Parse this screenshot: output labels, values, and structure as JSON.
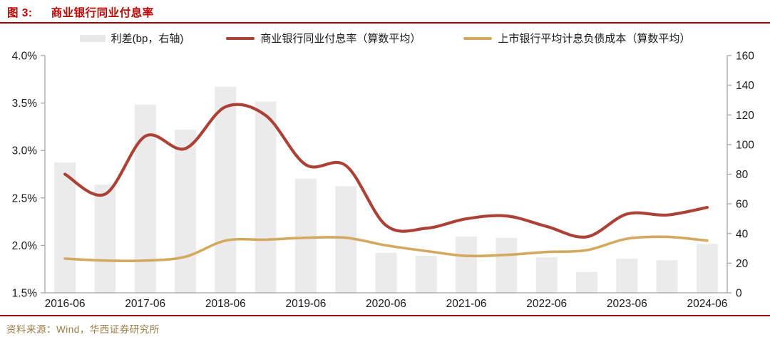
{
  "header": {
    "figure_label": "图 3:",
    "title": "商业银行同业付息率"
  },
  "legend": {
    "items": [
      {
        "label": "利差(bp，右轴)",
        "marker": "bar-swatch",
        "color": "#E7E7E7"
      },
      {
        "label": "商业银行同业付息率（算数平均）",
        "marker": "line",
        "color": "#AC4237"
      },
      {
        "label": "上市银行平均计息负债成本（算数平均）",
        "marker": "line",
        "color": "#D3A95F"
      }
    ]
  },
  "footer": {
    "source": "资料来源：Wind，华西证券研究所"
  },
  "colors": {
    "title_red": "#C00000",
    "rule_red": "#990000",
    "axis_line": "#A6A6A6",
    "tick_label": "#1A1A1A",
    "source_text": "#9C7B46",
    "bar_fill": "#EBEBEB",
    "rate_line": "#AC4237",
    "cost_line": "#D3A95F"
  },
  "chart_data": {
    "type": "combo",
    "categories": [
      "2016-06",
      "2016-12",
      "2017-06",
      "2017-12",
      "2018-06",
      "2018-12",
      "2019-06",
      "2019-12",
      "2020-06",
      "2020-12",
      "2021-06",
      "2021-12",
      "2022-06",
      "2022-12",
      "2023-06",
      "2023-12",
      "2024-06"
    ],
    "x_tick_labels": [
      "2016-06",
      "2017-06",
      "2018-06",
      "2019-06",
      "2020-06",
      "2021-06",
      "2022-06",
      "2023-06",
      "2024-06"
    ],
    "series": [
      {
        "name": "利差(bp，右轴)",
        "type": "bar",
        "axis": "right",
        "color": "#EBEBEB",
        "values": [
          88,
          73,
          127,
          110,
          139,
          129,
          77,
          72,
          27,
          25,
          38,
          37,
          24,
          14,
          23,
          22,
          33
        ]
      },
      {
        "name": "商业银行同业付息率（算数平均）",
        "type": "line",
        "axis": "left",
        "color": "#AC4237",
        "values": [
          2.75,
          2.54,
          3.15,
          3.02,
          3.46,
          3.37,
          2.85,
          2.84,
          2.21,
          2.18,
          2.28,
          2.31,
          2.2,
          2.09,
          2.33,
          2.32,
          2.4
        ]
      },
      {
        "name": "上市银行平均计息负债成本（算数平均）",
        "type": "line",
        "axis": "left",
        "color": "#D3A95F",
        "values": [
          1.86,
          1.84,
          1.84,
          1.88,
          2.05,
          2.06,
          2.08,
          2.08,
          2.0,
          1.94,
          1.89,
          1.9,
          1.93,
          1.95,
          2.07,
          2.09,
          2.05
        ]
      }
    ],
    "left_axis": {
      "min": 1.5,
      "max": 4.0,
      "tick_labels": [
        "4.0%",
        "3.5%",
        "3.0%",
        "2.5%",
        "2.0%",
        "1.5%"
      ]
    },
    "right_axis": {
      "min": 0,
      "max": 160,
      "tick_labels": [
        "160",
        "140",
        "120",
        "100",
        "80",
        "60",
        "40",
        "20",
        "0"
      ]
    },
    "grid": false,
    "legend_position": "top"
  }
}
